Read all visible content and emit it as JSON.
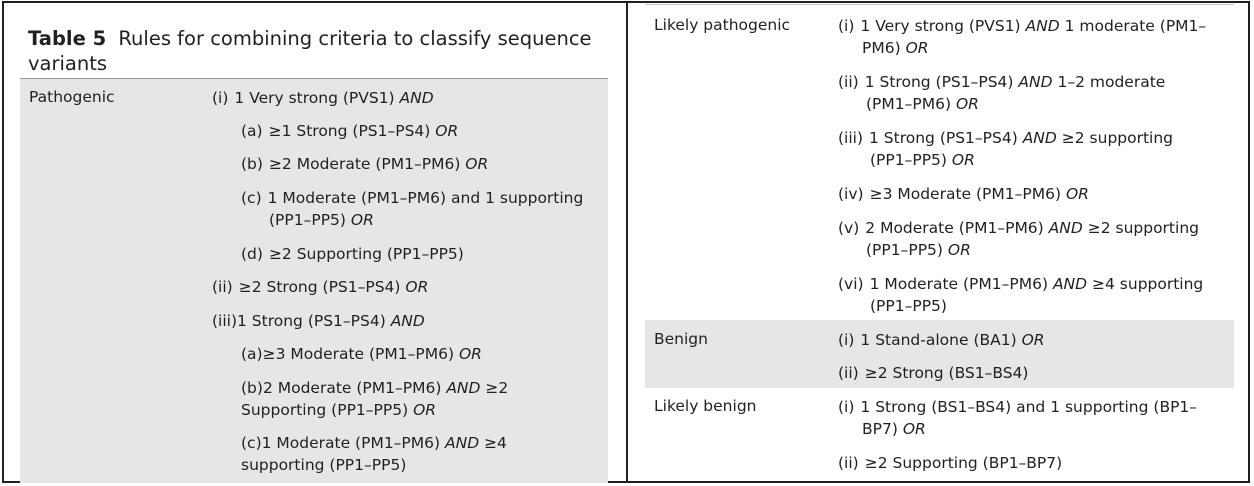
{
  "table": {
    "number": "Table 5",
    "title": "Rules for combining criteria to classify sequence variants"
  },
  "pathogenic": {
    "label": "Pathogenic",
    "i": {
      "marker": "(i)",
      "text": "1 Very strong (PVS1) ",
      "conj": "AND"
    },
    "i_a": {
      "marker": "(a)",
      "text": "≥1 Strong (PS1–PS4) ",
      "conj": "OR"
    },
    "i_b": {
      "marker": "(b)",
      "text": "≥2 Moderate (PM1–PM6) ",
      "conj": "OR"
    },
    "i_c": {
      "marker": "(c)",
      "text": "1 Moderate (PM1–PM6) and 1 supporting",
      "text2": "(PP1–PP5) ",
      "conj": "OR"
    },
    "i_d": {
      "marker": "(d)",
      "text": "≥2 Supporting (PP1–PP5)"
    },
    "ii": {
      "marker": "(ii)",
      "text": "≥2 Strong (PS1–PS4) ",
      "conj": "OR"
    },
    "iii": {
      "marker": "(iii)",
      "text": "1 Strong (PS1–PS4) ",
      "conj": "AND"
    },
    "iii_a": {
      "marker": "(a)",
      "text": "≥3 Moderate (PM1–PM6) ",
      "conj": "OR"
    },
    "iii_b": {
      "marker": "(b)",
      "text": "2 Moderate (PM1–PM6) ",
      "conj": "AND",
      "text_after": " ≥2",
      "text2": "Supporting (PP1–PP5) ",
      "conj2": "OR"
    },
    "iii_c": {
      "marker": "(c)",
      "text": "1 Moderate (PM1–PM6) ",
      "conj": "AND",
      "text_after": " ≥4",
      "text2": "supporting (PP1–PP5)"
    }
  },
  "likely_pathogenic": {
    "label": "Likely pathogenic",
    "i": {
      "marker": "(i)",
      "text": "1 Very strong (PVS1) ",
      "conj": "AND",
      "text_after": " 1 moderate (PM1–",
      "text2": "PM6) ",
      "conj2": "OR"
    },
    "ii": {
      "marker": "(ii)",
      "text": "1 Strong (PS1–PS4) ",
      "conj": "AND",
      "text_after": " 1–2 moderate",
      "text2": "(PM1–PM6) ",
      "conj2": "OR"
    },
    "iii": {
      "marker": "(iii)",
      "text": "1 Strong (PS1–PS4) ",
      "conj": "AND",
      "text_after": " ≥2 supporting",
      "text2": "(PP1–PP5) ",
      "conj2": "OR"
    },
    "iv": {
      "marker": "(iv)",
      "text": "≥3 Moderate (PM1–PM6) ",
      "conj": "OR"
    },
    "v": {
      "marker": "(v)",
      "text": "2 Moderate (PM1–PM6) ",
      "conj": "AND",
      "text_after": " ≥2 supporting",
      "text2": "(PP1–PP5) ",
      "conj2": "OR"
    },
    "vi": {
      "marker": "(vi)",
      "text": "1 Moderate (PM1–PM6) ",
      "conj": "AND",
      "text_after": " ≥4 supporting",
      "text2": "(PP1–PP5)"
    }
  },
  "benign": {
    "label": "Benign",
    "i": {
      "marker": "(i)",
      "text": "1 Stand-alone (BA1) ",
      "conj": "OR"
    },
    "ii": {
      "marker": "(ii)",
      "text": "≥2 Strong (BS1–BS4)"
    }
  },
  "likely_benign": {
    "label": "Likely benign",
    "i": {
      "marker": "(i)",
      "text": "1 Strong (BS1–BS4) and 1 supporting (BP1–",
      "text2": "BP7) ",
      "conj2": "OR"
    },
    "ii": {
      "marker": "(ii)",
      "text": "≥2 Supporting (BP1–BP7)"
    }
  }
}
